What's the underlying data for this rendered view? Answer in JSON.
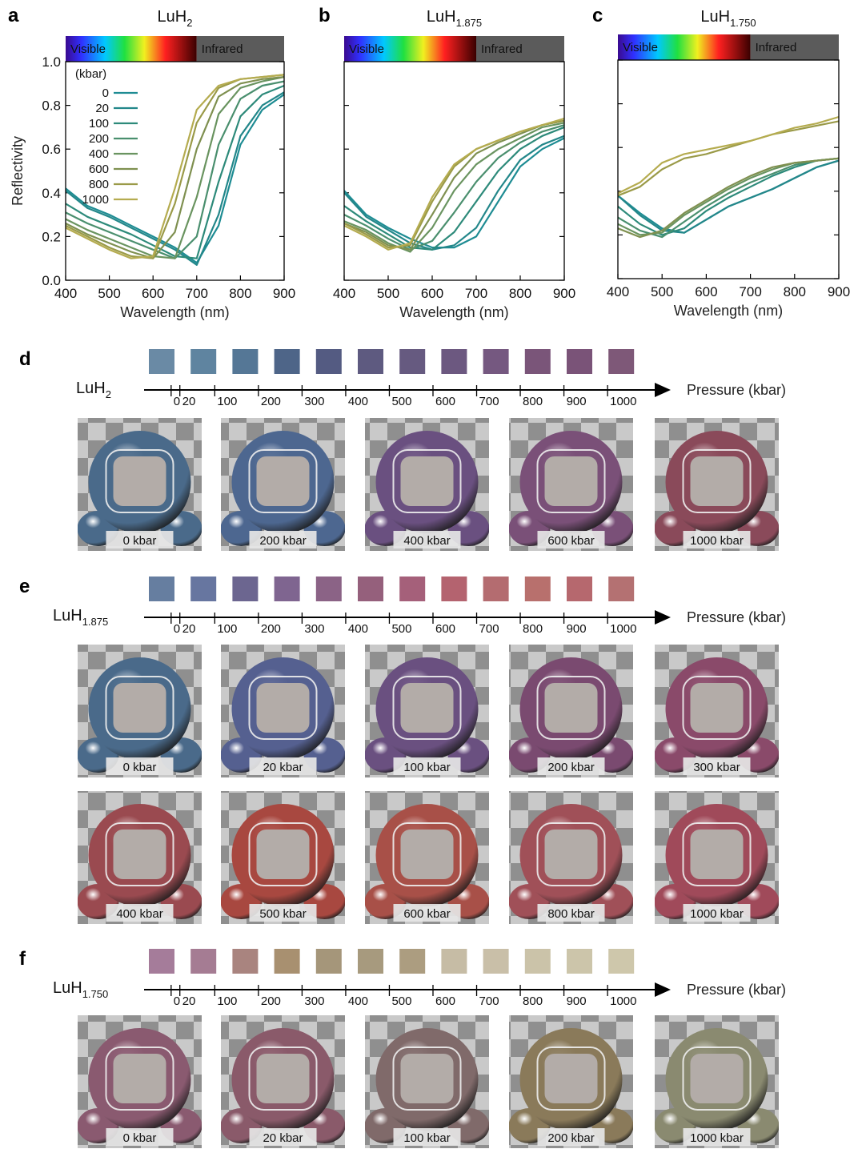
{
  "chart_data": [
    {
      "type": "line",
      "panel": "a",
      "title": "LuH",
      "title_subscript": "2",
      "ylabel": "Reflectivity",
      "xlabel": "Wavelength (nm)",
      "spectrum_labels": [
        "Visible",
        "Infrared"
      ],
      "infrared_start": 700,
      "show_ytick_labels": true,
      "legend": "upper left",
      "legend_title": "(kbar)",
      "x": [
        400,
        450,
        500,
        550,
        600,
        650,
        700,
        750,
        800,
        850,
        900
      ],
      "xlim": [
        400,
        900
      ],
      "ylim": [
        0,
        1
      ],
      "xticks": [
        400,
        500,
        600,
        700,
        800,
        900
      ],
      "yticks": [
        {
          "value": 0,
          "label": "0.0"
        },
        0.2,
        0.4,
        0.6,
        0.8,
        {
          "value": 1,
          "label": "1.0"
        }
      ],
      "series": [
        {
          "name": "0",
          "color": "#1e8c93",
          "values": [
            0.42,
            0.34,
            0.3,
            0.25,
            0.2,
            0.15,
            0.08,
            0.25,
            0.62,
            0.78,
            0.85
          ]
        },
        {
          "name": "20",
          "color": "#23878a",
          "values": [
            0.41,
            0.33,
            0.29,
            0.24,
            0.19,
            0.14,
            0.07,
            0.3,
            0.66,
            0.8,
            0.86
          ]
        },
        {
          "name": "100",
          "color": "#2d8a7a",
          "values": [
            0.35,
            0.29,
            0.25,
            0.21,
            0.16,
            0.11,
            0.1,
            0.45,
            0.75,
            0.85,
            0.89
          ]
        },
        {
          "name": "200",
          "color": "#4a8f6e",
          "values": [
            0.31,
            0.26,
            0.22,
            0.18,
            0.14,
            0.1,
            0.2,
            0.62,
            0.83,
            0.89,
            0.91
          ]
        },
        {
          "name": "400",
          "color": "#6a9460",
          "values": [
            0.28,
            0.23,
            0.19,
            0.15,
            0.11,
            0.1,
            0.38,
            0.76,
            0.88,
            0.91,
            0.93
          ]
        },
        {
          "name": "600",
          "color": "#7f9050",
          "values": [
            0.26,
            0.21,
            0.17,
            0.13,
            0.1,
            0.22,
            0.6,
            0.84,
            0.9,
            0.92,
            0.93
          ]
        },
        {
          "name": "800",
          "color": "#9a9a48",
          "values": [
            0.25,
            0.2,
            0.15,
            0.11,
            0.1,
            0.35,
            0.72,
            0.88,
            0.92,
            0.93,
            0.94
          ]
        },
        {
          "name": "1000",
          "color": "#b5ac50",
          "values": [
            0.24,
            0.19,
            0.14,
            0.1,
            0.11,
            0.42,
            0.78,
            0.89,
            0.92,
            0.93,
            0.94
          ]
        }
      ]
    },
    {
      "type": "line",
      "panel": "b",
      "title": "LuH",
      "title_subscript": "1.875",
      "xlabel": "Wavelength (nm)",
      "spectrum_labels": [
        "Visible",
        "Infrared"
      ],
      "infrared_start": 700,
      "show_ytick_labels": false,
      "x": [
        400,
        450,
        500,
        550,
        600,
        650,
        700,
        750,
        800,
        850,
        900
      ],
      "xlim": [
        400,
        900
      ],
      "ylim": [
        0,
        1
      ],
      "xticks": [
        400,
        500,
        600,
        700,
        800,
        900
      ],
      "yticks": [
        0,
        0.2,
        0.4,
        0.6,
        0.8,
        1
      ],
      "series": [
        {
          "color": "#1e8c93",
          "values": [
            0.41,
            0.3,
            0.24,
            0.19,
            0.15,
            0.15,
            0.2,
            0.36,
            0.52,
            0.6,
            0.65
          ]
        },
        {
          "color": "#23878a",
          "values": [
            0.4,
            0.29,
            0.23,
            0.17,
            0.14,
            0.16,
            0.24,
            0.41,
            0.55,
            0.62,
            0.66
          ]
        },
        {
          "color": "#2d8a7a",
          "values": [
            0.34,
            0.27,
            0.21,
            0.15,
            0.14,
            0.22,
            0.36,
            0.5,
            0.6,
            0.66,
            0.7
          ]
        },
        {
          "color": "#4a8f6e",
          "values": [
            0.3,
            0.25,
            0.19,
            0.14,
            0.18,
            0.31,
            0.45,
            0.56,
            0.63,
            0.68,
            0.71
          ]
        },
        {
          "color": "#6a9460",
          "values": [
            0.27,
            0.23,
            0.17,
            0.13,
            0.24,
            0.41,
            0.53,
            0.6,
            0.65,
            0.7,
            0.72
          ]
        },
        {
          "color": "#7f9050",
          "values": [
            0.26,
            0.22,
            0.16,
            0.14,
            0.3,
            0.47,
            0.58,
            0.63,
            0.67,
            0.71,
            0.73
          ]
        },
        {
          "color": "#9a9a48",
          "values": [
            0.26,
            0.21,
            0.15,
            0.16,
            0.36,
            0.52,
            0.6,
            0.64,
            0.68,
            0.71,
            0.73
          ]
        },
        {
          "color": "#b5ac50",
          "values": [
            0.25,
            0.2,
            0.14,
            0.17,
            0.38,
            0.53,
            0.6,
            0.64,
            0.68,
            0.71,
            0.74
          ]
        }
      ]
    },
    {
      "type": "line",
      "panel": "c",
      "title": "LuH",
      "title_subscript": "1.750",
      "xlabel": "Wavelength (nm)",
      "spectrum_labels": [
        "Visible",
        "Infrared"
      ],
      "infrared_start": 700,
      "show_ytick_labels": false,
      "x": [
        400,
        450,
        500,
        550,
        600,
        650,
        700,
        750,
        800,
        850,
        900
      ],
      "xlim": [
        400,
        900
      ],
      "ylim": [
        0,
        1
      ],
      "xticks": [
        400,
        500,
        600,
        700,
        800,
        900
      ],
      "yticks": [
        0,
        0.2,
        0.4,
        0.6,
        0.8,
        1
      ],
      "series": [
        {
          "color": "#1e8c93",
          "values": [
            0.38,
            0.3,
            0.23,
            0.21,
            0.27,
            0.33,
            0.37,
            0.41,
            0.46,
            0.51,
            0.54
          ]
        },
        {
          "color": "#23878a",
          "values": [
            0.38,
            0.29,
            0.22,
            0.21,
            0.27,
            0.33,
            0.37,
            0.41,
            0.46,
            0.51,
            0.54
          ]
        },
        {
          "color": "#2d8a7a",
          "values": [
            0.33,
            0.25,
            0.2,
            0.23,
            0.31,
            0.37,
            0.42,
            0.47,
            0.51,
            0.54,
            0.55
          ]
        },
        {
          "color": "#4a8f6e",
          "values": [
            0.28,
            0.22,
            0.19,
            0.26,
            0.33,
            0.39,
            0.44,
            0.48,
            0.52,
            0.54,
            0.55
          ]
        },
        {
          "color": "#6a9460",
          "values": [
            0.25,
            0.2,
            0.21,
            0.29,
            0.35,
            0.41,
            0.46,
            0.5,
            0.53,
            0.54,
            0.55
          ]
        },
        {
          "color": "#7f9050",
          "values": [
            0.23,
            0.19,
            0.22,
            0.3,
            0.36,
            0.42,
            0.47,
            0.51,
            0.53,
            0.54,
            0.55
          ]
        },
        {
          "color": "#9a9a48",
          "values": [
            0.38,
            0.42,
            0.5,
            0.55,
            0.57,
            0.6,
            0.63,
            0.66,
            0.68,
            0.7,
            0.72
          ]
        },
        {
          "color": "#b5ac50",
          "values": [
            0.39,
            0.44,
            0.53,
            0.57,
            0.59,
            0.61,
            0.63,
            0.66,
            0.69,
            0.71,
            0.74
          ]
        }
      ]
    }
  ],
  "pressure_panels": [
    {
      "panel": "d",
      "material": "LuH",
      "material_subscript": "2",
      "axis_label": "Pressure (kbar)",
      "xlim": [
        -62,
        1130
      ],
      "ticks": [
        0,
        20,
        100,
        200,
        300,
        400,
        500,
        600,
        700,
        800,
        900,
        1000
      ],
      "swatch_colors": [
        "#6a8aa5",
        "#5f84a0",
        "#557796",
        "#4e6588",
        "#545b82",
        "#5e5a80",
        "#665a80",
        "#6c5880",
        "#755880",
        "#7a5579",
        "#7a5378",
        "#7e5878"
      ],
      "renders": [
        {
          "label": "0 kbar",
          "color": "#4a6a8a"
        },
        {
          "label": "200 kbar",
          "color": "#4d6790"
        },
        {
          "label": "400 kbar",
          "color": "#6a5080"
        },
        {
          "label": "600 kbar",
          "color": "#7a5078"
        },
        {
          "label": "1000 kbar",
          "color": "#8a4a5a"
        }
      ]
    },
    {
      "panel": "e",
      "material": "LuH",
      "material_subscript": "1.875",
      "axis_label": "Pressure (kbar)",
      "xlim": [
        -62,
        1130
      ],
      "ticks": [
        0,
        20,
        100,
        200,
        300,
        400,
        500,
        600,
        700,
        800,
        900,
        1000
      ],
      "swatch_colors": [
        "#667ea0",
        "#6776a0",
        "#6c6690",
        "#7f6590",
        "#8b6386",
        "#95607c",
        "#a5607a",
        "#b4636f",
        "#b46c70",
        "#b8706d",
        "#b6686e",
        "#b47172"
      ],
      "renders": [
        {
          "label": "0 kbar",
          "color": "#4a6a8a"
        },
        {
          "label": "20 kbar",
          "color": "#556090"
        },
        {
          "label": "100 kbar",
          "color": "#6a5080"
        },
        {
          "label": "200 kbar",
          "color": "#7a4a70"
        },
        {
          "label": "300 kbar",
          "color": "#8a4a6a"
        },
        {
          "label": "400 kbar",
          "color": "#9a4a50"
        },
        {
          "label": "500 kbar",
          "color": "#a84840"
        },
        {
          "label": "600 kbar",
          "color": "#a85048"
        },
        {
          "label": "800 kbar",
          "color": "#a05058"
        },
        {
          "label": "1000 kbar",
          "color": "#a04a5a"
        }
      ]
    },
    {
      "panel": "f",
      "material": "LuH",
      "material_subscript": "1.750",
      "axis_label": "Pressure (kbar)",
      "xlim": [
        -62,
        1130
      ],
      "ticks": [
        0,
        20,
        100,
        200,
        300,
        400,
        500,
        600,
        700,
        800,
        900,
        1000
      ],
      "swatch_colors": [
        "#a57c9a",
        "#a57c93",
        "#a9847f",
        "#a89070",
        "#a5967a",
        "#a79a7e",
        "#ac9d80",
        "#c6bca5",
        "#c9bfa8",
        "#cbc3a9",
        "#ccc5aa",
        "#cec7ab"
      ],
      "renders": [
        {
          "label": "0 kbar",
          "color": "#8a5a70"
        },
        {
          "label": "20 kbar",
          "color": "#8a5a6a"
        },
        {
          "label": "100 kbar",
          "color": "#806a6a"
        },
        {
          "label": "200 kbar",
          "color": "#8a7a5a"
        },
        {
          "label": "1000 kbar",
          "color": "#8a8a70"
        }
      ]
    }
  ]
}
